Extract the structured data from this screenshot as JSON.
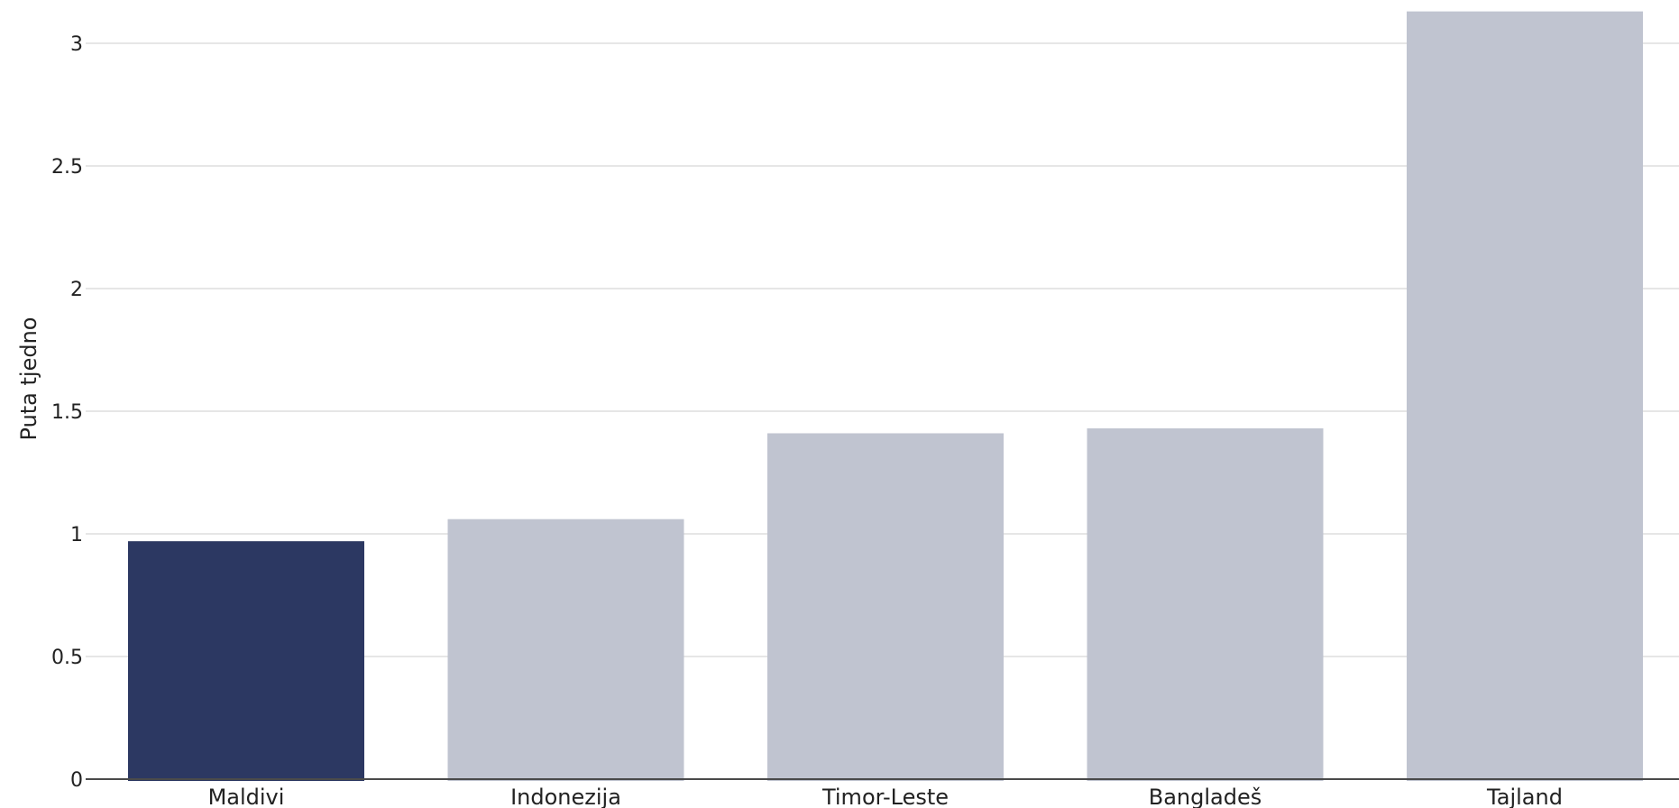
{
  "chart_data": {
    "type": "bar",
    "categories": [
      "Maldivi",
      "Indonezija",
      "Timor-Leste",
      "Bangladeš",
      "Tajland"
    ],
    "values": [
      0.97,
      1.06,
      1.41,
      1.43,
      3.13
    ],
    "xlabel": "",
    "ylabel": "Puta tjedno",
    "ylim": [
      0,
      3.13
    ],
    "yticks": [
      0,
      0.5,
      1,
      1.5,
      2,
      2.5,
      3
    ],
    "ytick_labels": [
      "0",
      "0.5",
      "1",
      "1.5",
      "2",
      "2.5",
      "3"
    ],
    "grid": true,
    "highlight_index": 0,
    "colors": {
      "highlight": "#2c3862",
      "default": "#c0c4d0"
    }
  }
}
